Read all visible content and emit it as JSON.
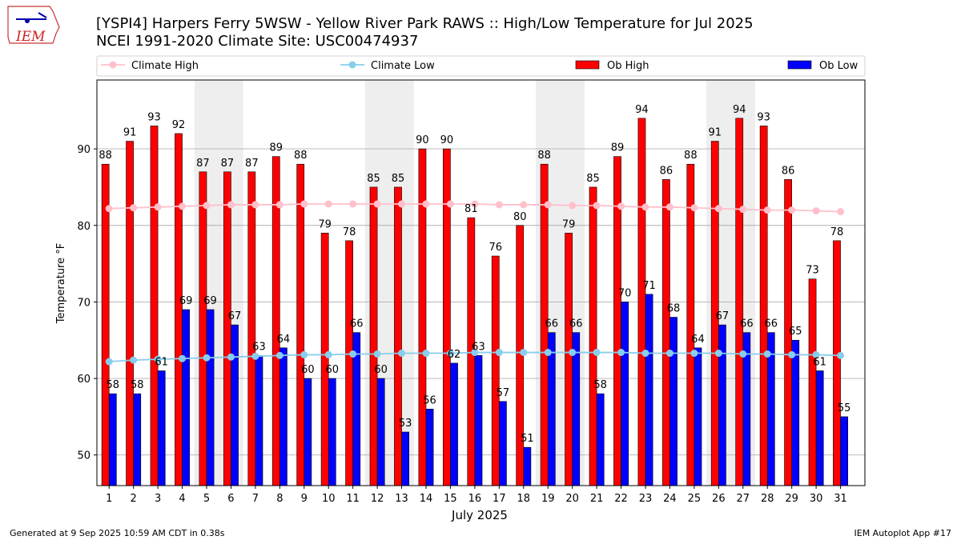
{
  "header": {
    "title_line1": "[YSPI4] Harpers Ferry 5WSW - Yellow River Park RAWS :: High/Low Temperature for Jul 2025",
    "title_line2": "NCEI 1991-2020 Climate Site: USC00474937",
    "logo_text": "IEM"
  },
  "footer": {
    "left": "Generated at 9 Sep 2025 10:59 AM CDT in 0.38s",
    "right": "IEM Autoplot App #17"
  },
  "colors": {
    "ob_high": "#ff0000",
    "ob_low": "#0000ff",
    "climate_high": "#ffc0cb",
    "climate_low": "#87ceeb",
    "weekend_shade": "#eeeeee",
    "grid": "#b0b0b0"
  },
  "chart_data": {
    "type": "bar",
    "title": "[YSPI4] Harpers Ferry 5WSW - Yellow River Park RAWS :: High/Low Temperature for Jul 2025",
    "subtitle": "NCEI 1991-2020 Climate Site: USC00474937",
    "xlabel": "July 2025",
    "ylabel": "Temperature °F",
    "ylim": [
      46,
      99
    ],
    "yticks": [
      50,
      60,
      70,
      80,
      90
    ],
    "grid": "horizontal",
    "legend_position": "top",
    "categories": [
      1,
      2,
      3,
      4,
      5,
      6,
      7,
      8,
      9,
      10,
      11,
      12,
      13,
      14,
      15,
      16,
      17,
      18,
      19,
      20,
      21,
      22,
      23,
      24,
      25,
      26,
      27,
      28,
      29,
      30,
      31
    ],
    "shaded_days": [
      [
        5,
        6
      ],
      [
        12,
        13
      ],
      [
        19,
        20
      ],
      [
        26,
        27
      ]
    ],
    "series": [
      {
        "name": "Ob High",
        "kind": "bar",
        "values": [
          88,
          91,
          93,
          92,
          87,
          87,
          87,
          89,
          88,
          79,
          78,
          85,
          85,
          90,
          90,
          81,
          76,
          80,
          88,
          79,
          85,
          89,
          94,
          86,
          88,
          91,
          94,
          93,
          86,
          73,
          78
        ]
      },
      {
        "name": "Ob Low",
        "kind": "bar",
        "values": [
          58,
          58,
          61,
          69,
          69,
          67,
          63,
          64,
          60,
          60,
          66,
          60,
          53,
          56,
          62,
          63,
          57,
          51,
          66,
          66,
          58,
          70,
          71,
          68,
          64,
          67,
          66,
          66,
          65,
          61,
          55
        ]
      },
      {
        "name": "Climate High",
        "kind": "line",
        "values": [
          82.2,
          82.3,
          82.4,
          82.5,
          82.6,
          82.7,
          82.7,
          82.7,
          82.8,
          82.8,
          82.8,
          82.8,
          82.8,
          82.8,
          82.8,
          82.8,
          82.7,
          82.7,
          82.7,
          82.6,
          82.6,
          82.5,
          82.4,
          82.4,
          82.3,
          82.2,
          82.1,
          82.0,
          82.0,
          81.9,
          81.8
        ]
      },
      {
        "name": "Climate Low",
        "kind": "line",
        "values": [
          62.2,
          62.4,
          62.5,
          62.6,
          62.7,
          62.8,
          62.9,
          63.0,
          63.1,
          63.1,
          63.2,
          63.2,
          63.3,
          63.3,
          63.3,
          63.4,
          63.4,
          63.4,
          63.4,
          63.4,
          63.4,
          63.4,
          63.3,
          63.3,
          63.3,
          63.3,
          63.2,
          63.2,
          63.1,
          63.1,
          63.0
        ]
      }
    ]
  }
}
